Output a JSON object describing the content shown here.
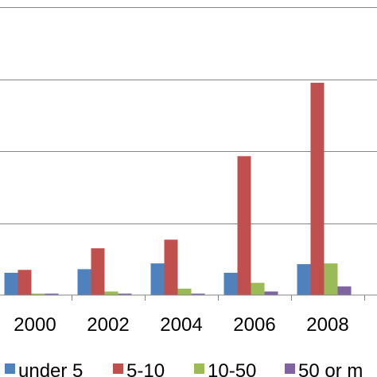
{
  "chart_data": {
    "type": "bar",
    "categories": [
      "2000",
      "2002",
      "2004",
      "2006",
      "2008"
    ],
    "series": [
      {
        "name": "under 5",
        "values": [
          3.1,
          3.6,
          4.4,
          3.1,
          4.3
        ],
        "color": "#4f81bd"
      },
      {
        "name": "5-10",
        "values": [
          3.5,
          6.5,
          7.7,
          19.3,
          29.5
        ],
        "color": "#c0504d"
      },
      {
        "name": "10-50",
        "values": [
          0.2,
          0.5,
          0.9,
          1.7,
          4.4
        ],
        "color": "#9bbb59"
      },
      {
        "name": "50 or m",
        "values": [
          0.2,
          0.2,
          0.2,
          0.5,
          1.2
        ],
        "color": "#8064a2"
      }
    ],
    "ylim": [
      0,
      40
    ],
    "yticks": [
      10,
      20,
      30,
      40
    ],
    "grid": true,
    "legend": "bottom"
  }
}
